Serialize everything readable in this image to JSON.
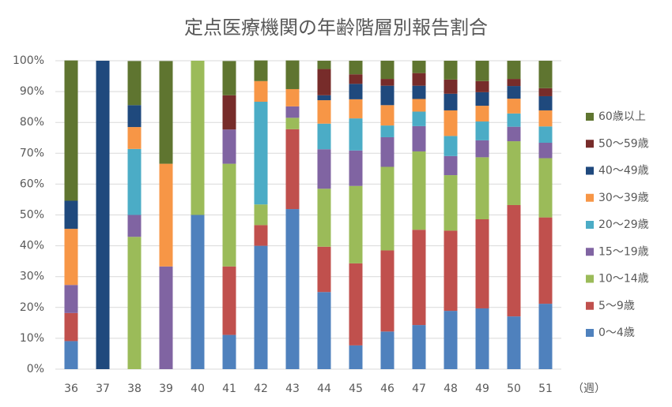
{
  "chart_data": {
    "type": "stacked_bar_percent",
    "title": "定点医療機関の年齢階層別報告割合",
    "x_label": "（週）",
    "categories": [
      "36",
      "37",
      "38",
      "39",
      "40",
      "41",
      "42",
      "43",
      "44",
      "45",
      "46",
      "47",
      "48",
      "49",
      "50",
      "51"
    ],
    "ylim": [
      0,
      100
    ],
    "yticks": [
      {
        "value": 0,
        "label": "0%"
      },
      {
        "value": 10,
        "label": "10%"
      },
      {
        "value": 20,
        "label": "20%"
      },
      {
        "value": 30,
        "label": "30%"
      },
      {
        "value": 40,
        "label": "40%"
      },
      {
        "value": 50,
        "label": "50%"
      },
      {
        "value": 60,
        "label": "60%"
      },
      {
        "value": 70,
        "label": "70%"
      },
      {
        "value": 80,
        "label": "80%"
      },
      {
        "value": 90,
        "label": "90%"
      },
      {
        "value": 100,
        "label": "100%"
      }
    ],
    "grid": true,
    "legend": "right",
    "series": [
      {
        "name": "0～4歳",
        "color": "#4f81bd",
        "values": [
          9.1,
          0,
          0,
          0,
          50,
          11.1,
          40,
          51.9,
          25,
          7.7,
          12.2,
          14.3,
          18.9,
          19.7,
          17.1,
          21.2
        ]
      },
      {
        "name": "5～9歳",
        "color": "#c0504d",
        "values": [
          9.1,
          0,
          0,
          0,
          0,
          22.2,
          6.7,
          25.9,
          14.7,
          26.6,
          26.3,
          30.9,
          26.0,
          28.9,
          36.1,
          28.0
        ]
      },
      {
        "name": "10～14歳",
        "color": "#9bbb59",
        "values": [
          0,
          0,
          42.9,
          0,
          50,
          33.3,
          6.7,
          3.7,
          18.8,
          25.1,
          27.1,
          25.4,
          18.0,
          20.1,
          20.7,
          19.2
        ]
      },
      {
        "name": "15～19歳",
        "color": "#8064a2",
        "values": [
          9.1,
          0,
          7.1,
          33.3,
          0,
          11.1,
          0,
          3.7,
          12.8,
          11.5,
          9.6,
          8.2,
          6.2,
          5.5,
          4.7,
          5.0
        ]
      },
      {
        "name": "20～29歳",
        "color": "#4bacc6",
        "values": [
          0,
          0,
          21.4,
          0,
          0,
          0,
          33.3,
          0,
          8.3,
          10.4,
          3.8,
          4.7,
          6.5,
          6.1,
          4.3,
          5.3
        ]
      },
      {
        "name": "30～39歳",
        "color": "#f79646",
        "values": [
          18.2,
          0,
          7.1,
          33.3,
          0,
          0,
          6.7,
          5.6,
          7.6,
          6.2,
          6.6,
          4.1,
          8.3,
          5.1,
          4.8,
          5.2
        ]
      },
      {
        "name": "40～49歳",
        "color": "#1f497d",
        "values": [
          9.1,
          100,
          7.1,
          0,
          0,
          0,
          0,
          0,
          1.6,
          5.0,
          6.3,
          4.3,
          5.4,
          4.4,
          4.1,
          4.6
        ]
      },
      {
        "name": "50～59歳",
        "color": "#772c2a",
        "values": [
          0,
          0,
          0,
          0,
          0,
          11.1,
          0,
          0,
          8.5,
          3.1,
          2.2,
          4.1,
          4.6,
          3.6,
          2.3,
          2.6
        ]
      },
      {
        "name": "60歳以上",
        "color": "#5f7530",
        "values": [
          45.5,
          0,
          14.3,
          33.3,
          0,
          11.1,
          6.7,
          9.3,
          2.7,
          4.4,
          5.9,
          4.0,
          6.1,
          6.6,
          5.9,
          8.9
        ]
      }
    ]
  }
}
